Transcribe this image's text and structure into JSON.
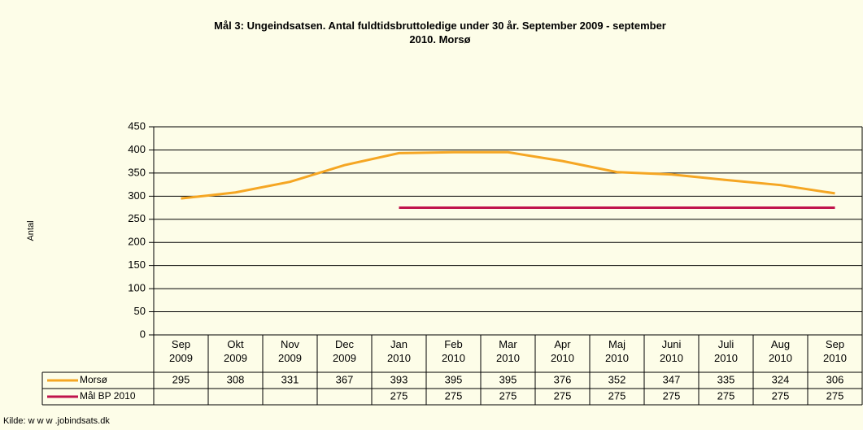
{
  "chart_data": {
    "type": "line",
    "title": "Mål 3: Ungeindsatsen. Antal fuldtidsbruttoledige under 30 år. September 2009 - september\n2010. Morsø",
    "y_label": "Antal",
    "source": "Kilde: w w w .jobindsats.dk",
    "categories": [
      "Sep\n2009",
      "Okt\n2009",
      "Nov\n2009",
      "Dec\n2009",
      "Jan\n2010",
      "Feb\n2010",
      "Mar\n2010",
      "Apr\n2010",
      "Maj\n2010",
      "Juni\n2010",
      "Juli\n2010",
      "Aug\n2010",
      "Sep\n2010"
    ],
    "series": [
      {
        "name": "Morsø",
        "color": "#f5a623",
        "values": [
          295,
          308,
          331,
          367,
          393,
          395,
          395,
          376,
          352,
          347,
          335,
          324,
          306
        ]
      },
      {
        "name": "Mål BP 2010",
        "color": "#c0144c",
        "values": [
          null,
          null,
          null,
          null,
          275,
          275,
          275,
          275,
          275,
          275,
          275,
          275,
          275
        ]
      }
    ],
    "ylim": [
      0,
      450
    ],
    "yticks": [
      0,
      50,
      100,
      150,
      200,
      250,
      300,
      350,
      400,
      450
    ],
    "grid": true
  }
}
